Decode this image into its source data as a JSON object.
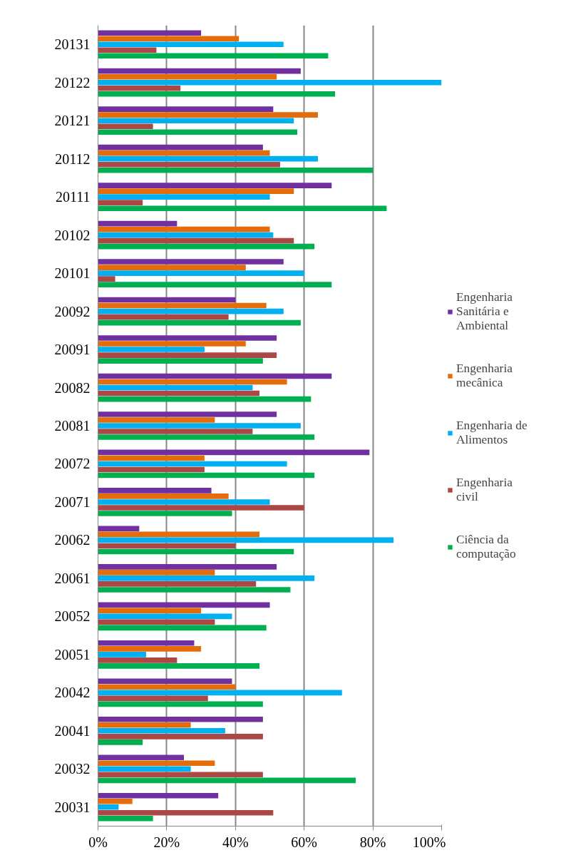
{
  "chart_data": {
    "type": "bar",
    "orientation": "horizontal",
    "categories": [
      "20131",
      "20122",
      "20121",
      "20112",
      "20111",
      "20102",
      "20101",
      "20092",
      "20091",
      "20082",
      "20081",
      "20072",
      "20071",
      "20062",
      "20061",
      "20052",
      "20051",
      "20042",
      "20041",
      "20032",
      "20031"
    ],
    "series": [
      {
        "name": "Engenharia Sanitária e Ambiental",
        "color": "#7030a0",
        "values": [
          30,
          59,
          51,
          48,
          68,
          23,
          54,
          40,
          52,
          68,
          52,
          79,
          33,
          12,
          52,
          50,
          28,
          39,
          48,
          25,
          35
        ]
      },
      {
        "name": "Engenharia mecânica",
        "color": "#e46c0a",
        "values": [
          41,
          52,
          64,
          50,
          57,
          50,
          43,
          49,
          43,
          55,
          34,
          31,
          38,
          47,
          34,
          30,
          30,
          40,
          27,
          34,
          10
        ]
      },
      {
        "name": "Engenharia de Alimentos",
        "color": "#00b0f0",
        "values": [
          54,
          100,
          57,
          64,
          50,
          51,
          60,
          54,
          31,
          45,
          59,
          55,
          50,
          86,
          63,
          39,
          14,
          71,
          37,
          27,
          6
        ]
      },
      {
        "name": "Engenharia civil",
        "color": "#ab4744",
        "values": [
          17,
          24,
          16,
          53,
          13,
          57,
          5,
          38,
          52,
          47,
          45,
          31,
          60,
          40,
          46,
          34,
          23,
          32,
          48,
          48,
          51
        ]
      },
      {
        "name": "Ciência da computação",
        "color": "#00b050",
        "values": [
          67,
          69,
          58,
          80,
          84,
          63,
          68,
          59,
          48,
          62,
          63,
          63,
          39,
          57,
          56,
          49,
          47,
          48,
          13,
          75,
          16
        ]
      }
    ],
    "xlim": [
      0,
      100
    ],
    "xticks": [
      {
        "value": 0,
        "label": "0%"
      },
      {
        "value": 20,
        "label": "20%"
      },
      {
        "value": 40,
        "label": "40%"
      },
      {
        "value": 60,
        "label": "60%"
      },
      {
        "value": 80,
        "label": "80%"
      },
      {
        "value": 100,
        "label": "100%"
      }
    ],
    "grid": "x",
    "legend": "right"
  }
}
